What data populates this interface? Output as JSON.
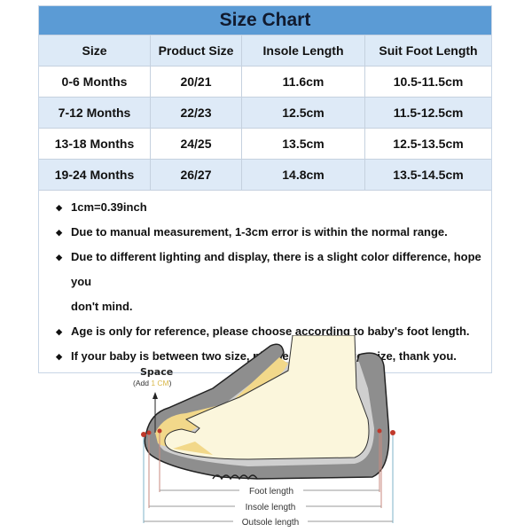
{
  "title": "Size Chart",
  "headers": [
    "Size",
    "Product Size",
    "Insole Length",
    "Suit Foot Length"
  ],
  "rows": [
    [
      "0-6 Months",
      "20/21",
      "11.6cm",
      "10.5-11.5cm"
    ],
    [
      "7-12 Months",
      "22/23",
      "12.5cm",
      "11.5-12.5cm"
    ],
    [
      "13-18 Months",
      "24/25",
      "13.5cm",
      "12.5-13.5cm"
    ],
    [
      "19-24 Months",
      "26/27",
      "14.8cm",
      "13.5-14.5cm"
    ]
  ],
  "notes": [
    "1cm=0.39inch",
    "Due to manual measurement, 1-3cm error is within the normal range.",
    "Due to different lighting and display, there is a slight color difference, hope you",
    "don't mind.",
    "Age is only for reference, please choose according to baby's foot length.",
    "If your baby is between two size, please choose larger size, thank you."
  ],
  "illustration": {
    "space_label": "Space",
    "add_prefix": "(Add ",
    "add_value": "1 CM",
    "add_suffix": ")",
    "foot_length": "Foot length",
    "insole_length": "Insole length",
    "outsole_length": "Outsole length"
  },
  "colors": {
    "header_blue": "#5b9bd5",
    "row_blue": "#deeaf7",
    "accent_yellow": "#d9b84a"
  }
}
